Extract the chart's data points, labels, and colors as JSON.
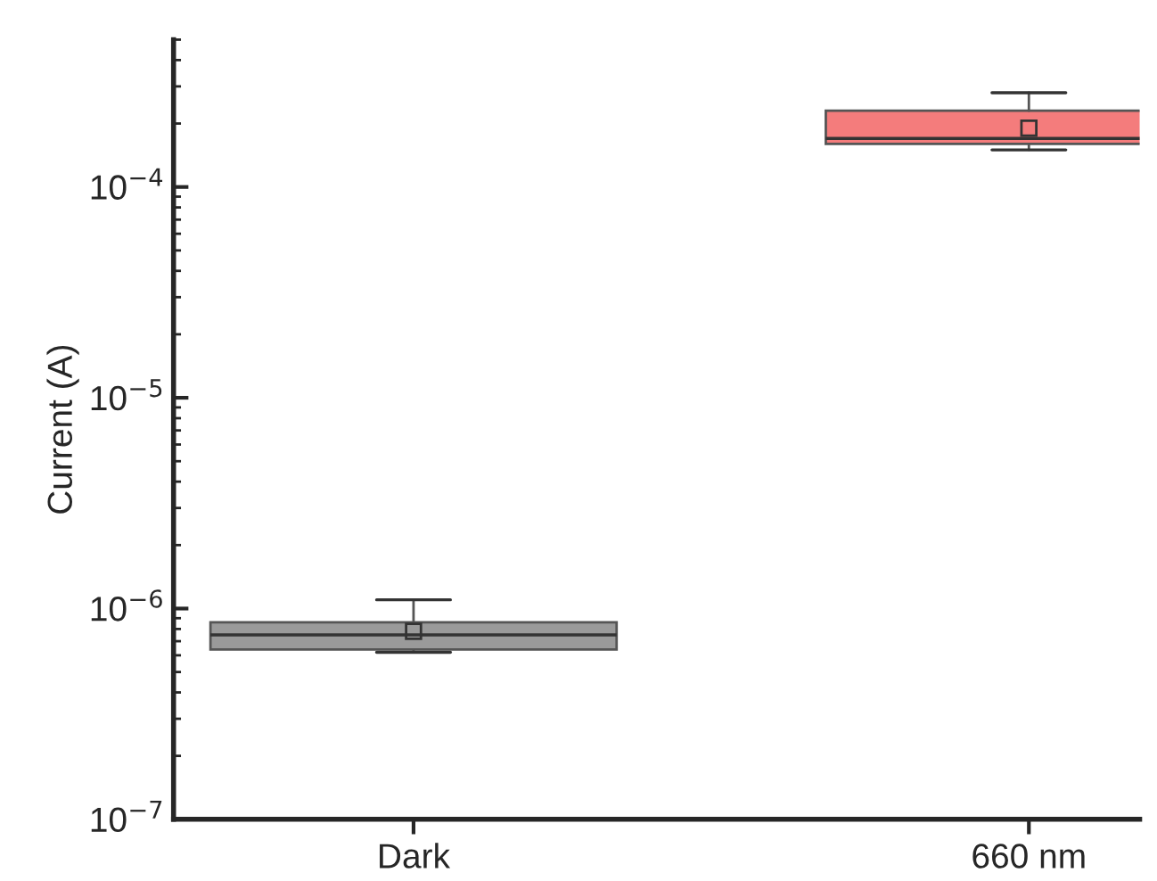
{
  "chart_data": {
    "type": "box",
    "ylabel": "Current (A)",
    "categories": [
      "Dark",
      "660 nm"
    ],
    "log": true,
    "ylim": [
      1e-07,
      0.0005
    ],
    "yticks": [
      {
        "value": 1e-07,
        "label": "10$^{−7}$"
      },
      {
        "value": 1e-06,
        "label": "10$^{−6}$"
      },
      {
        "value": 1e-05,
        "label": "10$^{−5}$"
      },
      {
        "value": 0.0001,
        "label": "10$^{−4}$"
      }
    ],
    "colors": [
      "#9a9a9a",
      "#f47c7c"
    ],
    "grid": false,
    "legend": false,
    "boxes": [
      {
        "low": 6.2e-07,
        "q1": 6.4e-07,
        "median": 7.5e-07,
        "q3": 8.6e-07,
        "high": 1.1e-06,
        "mean": 7.8e-07
      },
      {
        "low": 0.00015,
        "q1": 0.00016,
        "median": 0.00017,
        "q3": 0.00023,
        "high": 0.00028,
        "mean": 0.00019
      }
    ]
  }
}
